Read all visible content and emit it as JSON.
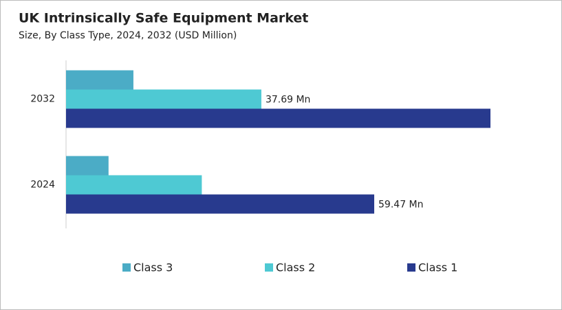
{
  "chart_data": {
    "type": "bar",
    "orientation": "horizontal",
    "title": "UK Intrinsically Safe Equipment Market",
    "subtitle": "Size, By Class Type, 2024, 2032 (USD Million)",
    "categories": [
      "2032",
      "2024"
    ],
    "series": [
      {
        "name": "Class 3",
        "color": "#4bacc6",
        "values": [
          13.0,
          8.2
        ],
        "value_labels": [
          null,
          null
        ]
      },
      {
        "name": "Class 2",
        "color": "#4ec9d3",
        "values": [
          37.69,
          26.2
        ],
        "value_labels": [
          "37.69 Mn",
          null
        ]
      },
      {
        "name": "Class 1",
        "color": "#283a8e",
        "values": [
          81.9,
          59.47
        ],
        "value_labels": [
          null,
          "59.47 Mn"
        ]
      }
    ]
  }
}
